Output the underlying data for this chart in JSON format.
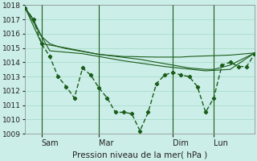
{
  "title": "",
  "xlabel": "Pression niveau de la mer( hPa )",
  "bg_color": "#cceee8",
  "grid_color": "#aaddcc",
  "line_color": "#1a5c1a",
  "ylim": [
    1009,
    1018
  ],
  "yticks": [
    1009,
    1010,
    1011,
    1012,
    1013,
    1014,
    1015,
    1016,
    1017,
    1018
  ],
  "xlim": [
    0,
    28
  ],
  "vlines_x": [
    2,
    9,
    18,
    23
  ],
  "day_labels": [
    "Sam",
    "Mar",
    "Dim",
    "Lun"
  ],
  "smooth_line1": [
    [
      0,
      1017.8
    ],
    [
      1,
      1017.0
    ],
    [
      2,
      1015.8
    ],
    [
      3,
      1015.3
    ],
    [
      4,
      1015.1
    ],
    [
      5,
      1014.95
    ],
    [
      6,
      1014.85
    ],
    [
      7,
      1014.75
    ],
    [
      8,
      1014.65
    ],
    [
      9,
      1014.55
    ],
    [
      10,
      1014.5
    ],
    [
      11,
      1014.45
    ],
    [
      12,
      1014.4
    ],
    [
      13,
      1014.4
    ],
    [
      14,
      1014.38
    ],
    [
      15,
      1014.37
    ],
    [
      16,
      1014.36
    ],
    [
      17,
      1014.36
    ],
    [
      18,
      1014.36
    ],
    [
      19,
      1014.36
    ],
    [
      20,
      1014.4
    ],
    [
      21,
      1014.42
    ],
    [
      22,
      1014.44
    ],
    [
      23,
      1014.46
    ],
    [
      24,
      1014.48
    ],
    [
      25,
      1014.5
    ],
    [
      26,
      1014.55
    ],
    [
      27,
      1014.6
    ],
    [
      28,
      1014.65
    ]
  ],
  "smooth_line2": [
    [
      0,
      1017.8
    ],
    [
      2,
      1015.3
    ],
    [
      5,
      1015.0
    ],
    [
      9,
      1014.55
    ],
    [
      14,
      1014.2
    ],
    [
      18,
      1013.8
    ],
    [
      20,
      1013.6
    ],
    [
      22,
      1013.5
    ],
    [
      23,
      1013.5
    ],
    [
      25,
      1013.8
    ],
    [
      28,
      1014.65
    ]
  ],
  "smooth_line3": [
    [
      0,
      1017.8
    ],
    [
      3,
      1014.8
    ],
    [
      7,
      1014.6
    ],
    [
      12,
      1014.1
    ],
    [
      17,
      1013.7
    ],
    [
      22,
      1013.4
    ],
    [
      25,
      1013.5
    ],
    [
      28,
      1014.65
    ]
  ],
  "detail_line": [
    [
      0,
      1017.8
    ],
    [
      1,
      1017.0
    ],
    [
      2,
      1015.3
    ],
    [
      3,
      1014.4
    ],
    [
      4,
      1013.0
    ],
    [
      5,
      1012.3
    ],
    [
      6,
      1011.5
    ],
    [
      7,
      1013.6
    ],
    [
      8,
      1013.1
    ],
    [
      9,
      1012.2
    ],
    [
      10,
      1011.5
    ],
    [
      11,
      1010.5
    ],
    [
      12,
      1010.5
    ],
    [
      13,
      1010.4
    ],
    [
      14,
      1009.2
    ],
    [
      15,
      1010.5
    ],
    [
      16,
      1012.5
    ],
    [
      17,
      1013.1
    ],
    [
      18,
      1013.3
    ],
    [
      19,
      1013.1
    ],
    [
      20,
      1013.0
    ],
    [
      21,
      1012.3
    ],
    [
      22,
      1010.5
    ],
    [
      23,
      1011.5
    ],
    [
      24,
      1013.8
    ],
    [
      25,
      1014.0
    ],
    [
      26,
      1013.7
    ],
    [
      27,
      1013.7
    ],
    [
      28,
      1014.6
    ]
  ]
}
